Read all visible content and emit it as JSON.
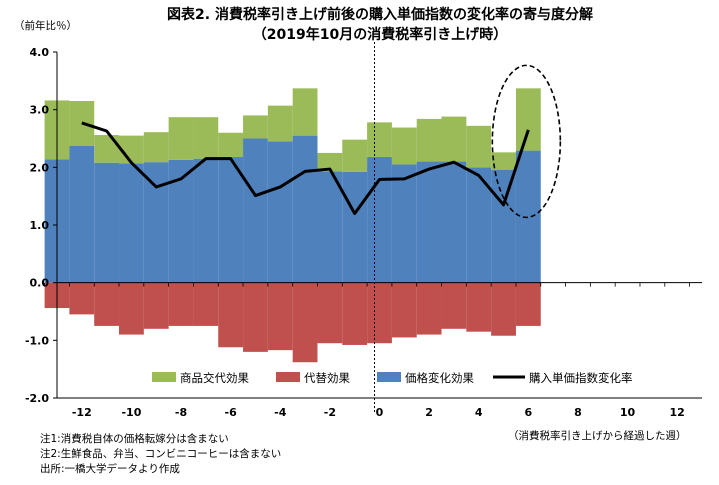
{
  "chart_data": {
    "type": "bar+line",
    "title_line1": "図表2. 消費税率引き上げ前後の購入単価指数の変化率の寄与度分解",
    "title_line2": "（2019年10月の消費税率引き上げ時）",
    "ylabel": "（前年比％）",
    "xlabel": "（消費税率引き上げから経過した週）",
    "ylim": [
      -2.0,
      4.0
    ],
    "yticks": [
      "4.0",
      "3.0",
      "2.0",
      "1.0",
      "0.0",
      "-1.0",
      "-2.0"
    ],
    "ytick_values": [
      4,
      3,
      2,
      1,
      0,
      -1,
      -2
    ],
    "xlim": [
      -13,
      13
    ],
    "xticks": [
      "-12",
      "-10",
      "-8",
      "-6",
      "-4",
      "-2",
      "0",
      "2",
      "4",
      "6",
      "8",
      "10",
      "12"
    ],
    "xtick_values": [
      -12,
      -10,
      -8,
      -6,
      -4,
      -2,
      0,
      2,
      4,
      6,
      8,
      10,
      12
    ],
    "weeks": [
      -13,
      -12,
      -11,
      -10,
      -9,
      -8,
      -7,
      -6,
      -5,
      -4,
      -3,
      -2,
      -1,
      0,
      1,
      2,
      3,
      4,
      5,
      6
    ],
    "series": [
      {
        "name": "商品交代効果",
        "kind": "bar",
        "color": "#9BBB59",
        "values": [
          1.02,
          0.78,
          0.48,
          0.48,
          0.52,
          0.74,
          0.72,
          0.42,
          0.4,
          0.62,
          0.82,
          0.32,
          0.56,
          0.6,
          0.64,
          0.74,
          0.78,
          0.72,
          0.3,
          1.08
        ]
      },
      {
        "name": "代替効果",
        "kind": "bar",
        "color": "#C0504D",
        "values": [
          -0.44,
          -0.55,
          -0.75,
          -0.9,
          -0.8,
          -0.75,
          -0.75,
          -1.12,
          -1.2,
          -1.17,
          -1.38,
          -1.05,
          -1.08,
          -1.05,
          -0.95,
          -0.9,
          -0.8,
          -0.85,
          -0.92,
          -0.75
        ]
      },
      {
        "name": "価格変化効果",
        "kind": "bar",
        "color": "#4F81BD",
        "values": [
          2.14,
          2.37,
          2.08,
          2.07,
          2.09,
          2.13,
          2.15,
          2.18,
          2.5,
          2.45,
          2.55,
          1.93,
          1.92,
          2.18,
          2.05,
          2.1,
          2.1,
          2.0,
          1.96,
          2.29
        ]
      },
      {
        "name": "購入単価指数変化率",
        "kind": "line",
        "color": "#000000",
        "x": [
          -12,
          -11,
          -10,
          -9,
          -8,
          -7,
          -6,
          -5,
          -4,
          -3,
          -2,
          -1,
          0,
          1,
          2,
          3,
          4,
          5,
          6
        ],
        "values": [
          2.77,
          2.63,
          2.08,
          1.66,
          1.8,
          2.15,
          2.15,
          1.51,
          1.66,
          1.93,
          1.97,
          1.2,
          1.79,
          1.8,
          1.97,
          2.09,
          1.86,
          1.35,
          2.65
        ]
      }
    ],
    "marker_line_x": 0,
    "highlight_ellipse_week": 6,
    "legend_position": "bottom-inside"
  },
  "notes": [
    "注1:消費税自体の価格転嫁分は含まない",
    "注2:生鮮食品、弁当、コンビニコーヒーは含まない",
    "出所:一橋大学データより作成"
  ]
}
